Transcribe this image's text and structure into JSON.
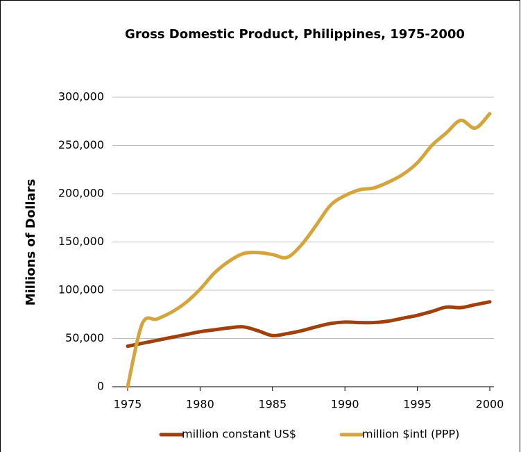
{
  "chart_data": {
    "type": "line",
    "title": "Gross Domestic Product, Philippines, 1975-2000",
    "y_label": "Millions of Dollars",
    "x": [
      1975,
      1976,
      1977,
      1978,
      1979,
      1980,
      1981,
      1982,
      1983,
      1984,
      1985,
      1986,
      1987,
      1988,
      1989,
      1990,
      1991,
      1992,
      1993,
      1994,
      1995,
      1996,
      1997,
      1998,
      1999,
      2000
    ],
    "series": [
      {
        "name": "million constant US$",
        "color": "#a0410d",
        "values": [
          42000,
          45000,
          48000,
          51000,
          54000,
          57000,
          59000,
          61000,
          62000,
          58000,
          53000,
          55000,
          58000,
          62000,
          65500,
          67000,
          66500,
          66500,
          68000,
          71000,
          74000,
          78000,
          82500,
          82000,
          85000,
          88000
        ]
      },
      {
        "name": "million $intl (PPP)",
        "color": "#d4a53c",
        "values": [
          0,
          65000,
          70000,
          77000,
          87000,
          101000,
          118000,
          130000,
          138000,
          139000,
          137000,
          134000,
          147000,
          167000,
          188000,
          198000,
          204000,
          206000,
          212000,
          220000,
          232000,
          250000,
          263000,
          276000,
          268000,
          283000
        ]
      }
    ],
    "xlim": [
      1975,
      2000
    ],
    "xticks": [
      1975,
      1980,
      1985,
      1990,
      1995,
      2000
    ],
    "ylim": [
      0,
      300000
    ],
    "yticks": [
      0,
      {
        "value": 50000,
        "label": "50,000"
      },
      {
        "value": 100000,
        "label": "100,000"
      },
      {
        "value": 150000,
        "label": "150,000"
      },
      {
        "value": 200000,
        "label": "200,000"
      },
      {
        "value": 250000,
        "label": "250,000"
      },
      {
        "value": 300000,
        "label": "300,000"
      }
    ],
    "grid": true,
    "legend": "bottom"
  }
}
